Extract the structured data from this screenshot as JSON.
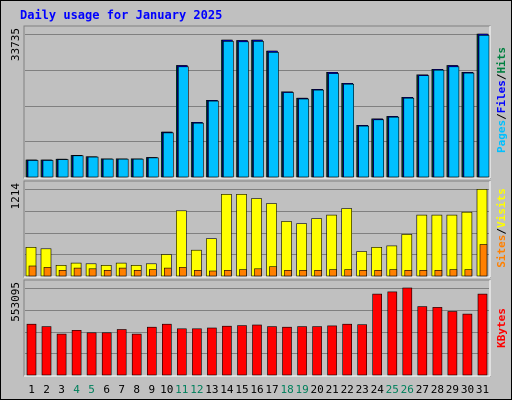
{
  "chart_data": {
    "type": "bar",
    "title": "Daily usage for January 2025",
    "categories": [
      "1",
      "2",
      "3",
      "4",
      "5",
      "6",
      "7",
      "8",
      "9",
      "10",
      "11",
      "12",
      "13",
      "14",
      "15",
      "16",
      "17",
      "18",
      "19",
      "20",
      "21",
      "22",
      "23",
      "24",
      "25",
      "26",
      "27",
      "28",
      "29",
      "30",
      "31"
    ],
    "weekend_days": [
      "4",
      "5",
      "11",
      "12",
      "18",
      "19",
      "25",
      "26"
    ],
    "panels": [
      {
        "key": "hits",
        "ylabel_parts": [
          "Pages",
          "/",
          "Files",
          "/",
          "Hits"
        ],
        "max_label": "33735",
        "ymax": 33735,
        "series": [
          {
            "name": "Hits",
            "color": "#008040",
            "values": [
              4000,
              4000,
              4200,
              5100,
              4800,
              4300,
              4300,
              4300,
              4600,
              10600,
              26300,
              12900,
              18100,
              32300,
              32200,
              32300,
              29700,
              20100,
              18600,
              20700,
              24700,
              22100,
              12200,
              13700,
              14300,
              18800,
              24100,
              25400,
              26300,
              24700,
              33700
            ]
          },
          {
            "name": "Files",
            "color": "#0000ff",
            "values": [
              4000,
              4000,
              4200,
              5100,
              4800,
              4300,
              4300,
              4300,
              4600,
              10600,
              26300,
              12900,
              18100,
              32300,
              32200,
              32300,
              29700,
              20100,
              18600,
              20700,
              24700,
              22100,
              12200,
              13700,
              14300,
              18800,
              24100,
              25400,
              26300,
              24700,
              33700
            ]
          },
          {
            "name": "Pages",
            "color": "#00c0ff",
            "values": [
              3900,
              3900,
              4100,
              5000,
              4700,
              4200,
              4200,
              4200,
              4500,
              10400,
              26000,
              12700,
              17900,
              32000,
              31900,
              32000,
              29400,
              19900,
              18400,
              20500,
              24400,
              21900,
              12000,
              13500,
              14100,
              18600,
              23900,
              25200,
              26000,
              24500,
              33400
            ]
          }
        ]
      },
      {
        "key": "visits",
        "ylabel_parts": [
          "Sites",
          "/",
          "Visits"
        ],
        "max_label": "1214",
        "ymax": 1214,
        "series": [
          {
            "name": "Visits",
            "color": "#ffff00",
            "values": [
              400,
              380,
              150,
              180,
              170,
              150,
              180,
              150,
              170,
              300,
              910,
              360,
              520,
              1140,
              1140,
              1080,
              1010,
              760,
              730,
              800,
              850,
              940,
              340,
              400,
              420,
              580,
              850,
              850,
              850,
              890,
              1210
            ]
          },
          {
            "name": "Sites",
            "color": "#ff8000",
            "values": [
              140,
              120,
              80,
              110,
              100,
              80,
              110,
              80,
              90,
              110,
              120,
              80,
              70,
              80,
              90,
              100,
              130,
              80,
              80,
              80,
              90,
              90,
              80,
              80,
              90,
              80,
              80,
              80,
              90,
              90,
              440
            ]
          }
        ]
      },
      {
        "key": "kbytes",
        "ylabel_parts": [
          "KBytes"
        ],
        "max_label": "553095",
        "ymax": 553095,
        "series": [
          {
            "name": "KBytes",
            "color": "#ff0000",
            "values": [
              323000,
              308000,
              260000,
              284000,
              268000,
              268000,
              289000,
              260000,
              304000,
              323000,
              294000,
              294000,
              299000,
              310000,
              314000,
              318000,
              308000,
              304000,
              308000,
              308000,
              312000,
              323000,
              320000,
              514000,
              528000,
              553000,
              435000,
              430000,
              404000,
              387000,
              514000
            ]
          }
        ]
      }
    ]
  },
  "colors": {
    "background": "#c0c0c0",
    "title": "#0000ff",
    "weekday": "#000000",
    "weekend": "#00805c",
    "grid": "#808080"
  }
}
